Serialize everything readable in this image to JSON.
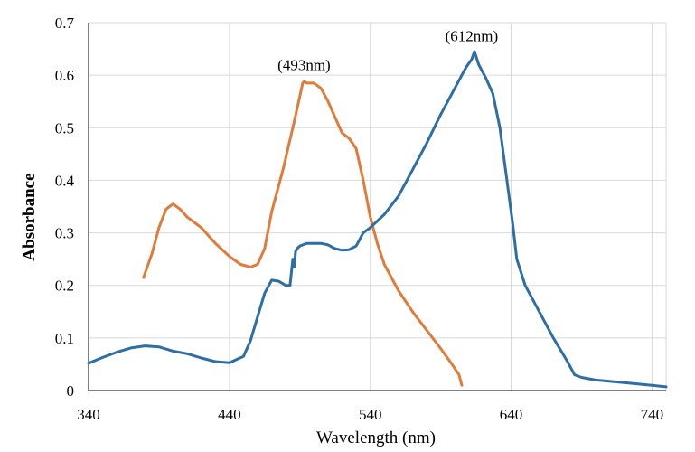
{
  "chart_data": {
    "type": "line",
    "title": "",
    "xlabel": "Wavelength (nm)",
    "ylabel": "Absorbance",
    "xlim": [
      340,
      750
    ],
    "ylim": [
      0,
      0.7
    ],
    "x_ticks": [
      340,
      440,
      540,
      640,
      740
    ],
    "y_ticks": [
      0,
      0.1,
      0.2,
      0.3,
      0.4,
      0.5,
      0.6,
      0.7
    ],
    "y_tick_labels": [
      "0",
      "0.1",
      "0.2",
      "0.3",
      "0.4",
      "0.5",
      "0.6",
      "0.7"
    ],
    "grid": true,
    "legend": "none",
    "series": [
      {
        "color": "#e07b39",
        "points": [
          [
            379,
            0.215
          ],
          [
            385,
            0.26
          ],
          [
            390,
            0.31
          ],
          [
            395,
            0.345
          ],
          [
            400,
            0.355
          ],
          [
            405,
            0.345
          ],
          [
            410,
            0.33
          ],
          [
            420,
            0.31
          ],
          [
            430,
            0.28
          ],
          [
            440,
            0.255
          ],
          [
            448,
            0.24
          ],
          [
            455,
            0.235
          ],
          [
            460,
            0.24
          ],
          [
            465,
            0.27
          ],
          [
            470,
            0.34
          ],
          [
            478,
            0.42
          ],
          [
            485,
            0.5
          ],
          [
            490,
            0.56
          ],
          [
            492,
            0.585
          ],
          [
            493,
            0.588
          ],
          [
            495,
            0.585
          ],
          [
            500,
            0.585
          ],
          [
            505,
            0.575
          ],
          [
            510,
            0.55
          ],
          [
            515,
            0.52
          ],
          [
            520,
            0.49
          ],
          [
            525,
            0.48
          ],
          [
            530,
            0.46
          ],
          [
            535,
            0.4
          ],
          [
            540,
            0.33
          ],
          [
            545,
            0.28
          ],
          [
            550,
            0.24
          ],
          [
            560,
            0.19
          ],
          [
            570,
            0.15
          ],
          [
            580,
            0.115
          ],
          [
            590,
            0.08
          ],
          [
            598,
            0.05
          ],
          [
            603,
            0.03
          ],
          [
            605,
            0.01
          ]
        ]
      },
      {
        "color": "#2e6ea6",
        "points": [
          [
            340,
            0.052
          ],
          [
            350,
            0.063
          ],
          [
            360,
            0.073
          ],
          [
            370,
            0.081
          ],
          [
            380,
            0.085
          ],
          [
            390,
            0.083
          ],
          [
            400,
            0.075
          ],
          [
            410,
            0.07
          ],
          [
            420,
            0.062
          ],
          [
            430,
            0.055
          ],
          [
            440,
            0.053
          ],
          [
            450,
            0.065
          ],
          [
            455,
            0.095
          ],
          [
            460,
            0.14
          ],
          [
            465,
            0.185
          ],
          [
            470,
            0.21
          ],
          [
            475,
            0.208
          ],
          [
            480,
            0.2
          ],
          [
            483,
            0.2
          ],
          [
            485,
            0.25
          ],
          [
            486,
            0.235
          ],
          [
            487,
            0.265
          ],
          [
            488,
            0.27
          ],
          [
            490,
            0.275
          ],
          [
            495,
            0.28
          ],
          [
            500,
            0.28
          ],
          [
            505,
            0.28
          ],
          [
            510,
            0.277
          ],
          [
            515,
            0.27
          ],
          [
            520,
            0.267
          ],
          [
            525,
            0.268
          ],
          [
            530,
            0.275
          ],
          [
            535,
            0.3
          ],
          [
            540,
            0.31
          ],
          [
            550,
            0.335
          ],
          [
            560,
            0.37
          ],
          [
            570,
            0.42
          ],
          [
            580,
            0.47
          ],
          [
            590,
            0.525
          ],
          [
            600,
            0.575
          ],
          [
            605,
            0.6
          ],
          [
            608,
            0.615
          ],
          [
            612,
            0.63
          ],
          [
            614,
            0.645
          ],
          [
            617,
            0.62
          ],
          [
            622,
            0.595
          ],
          [
            627,
            0.565
          ],
          [
            632,
            0.5
          ],
          [
            637,
            0.4
          ],
          [
            641,
            0.32
          ],
          [
            644,
            0.25
          ],
          [
            650,
            0.2
          ],
          [
            660,
            0.15
          ],
          [
            670,
            0.1
          ],
          [
            680,
            0.055
          ],
          [
            685,
            0.03
          ],
          [
            690,
            0.025
          ],
          [
            700,
            0.02
          ],
          [
            720,
            0.015
          ],
          [
            740,
            0.01
          ],
          [
            750,
            0.007
          ]
        ]
      }
    ],
    "annotations": [
      {
        "text": "(493nm)",
        "x": 493,
        "y": 0.61
      },
      {
        "text": "(612nm)",
        "x": 612,
        "y": 0.665
      }
    ]
  }
}
